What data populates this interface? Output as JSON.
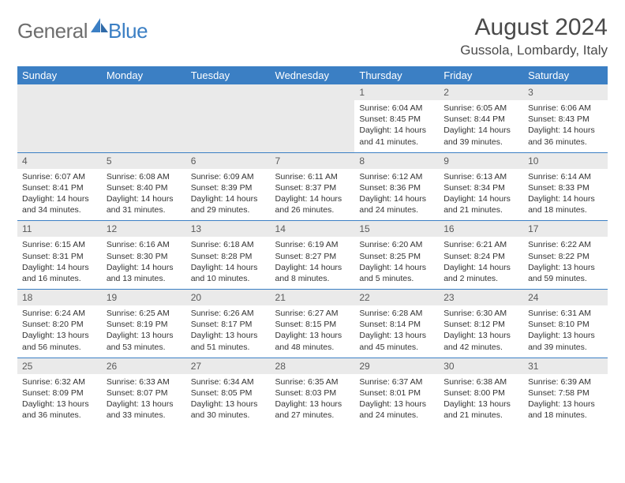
{
  "logo": {
    "general": "General",
    "blue": "Blue"
  },
  "title": "August 2024",
  "location": "Gussola, Lombardy, Italy",
  "colors": {
    "header_bg": "#3b7fc4",
    "header_text": "#ffffff",
    "daynum_bg": "#eaeaea",
    "row_border": "#3b7fc4",
    "body_text": "#333333",
    "logo_gray": "#6e6e6e",
    "logo_blue": "#3b7fc4"
  },
  "weekdays": [
    "Sunday",
    "Monday",
    "Tuesday",
    "Wednesday",
    "Thursday",
    "Friday",
    "Saturday"
  ],
  "weeks": [
    [
      null,
      null,
      null,
      null,
      {
        "n": "1",
        "sr": "Sunrise: 6:04 AM",
        "ss": "Sunset: 8:45 PM",
        "dl": "Daylight: 14 hours and 41 minutes."
      },
      {
        "n": "2",
        "sr": "Sunrise: 6:05 AM",
        "ss": "Sunset: 8:44 PM",
        "dl": "Daylight: 14 hours and 39 minutes."
      },
      {
        "n": "3",
        "sr": "Sunrise: 6:06 AM",
        "ss": "Sunset: 8:43 PM",
        "dl": "Daylight: 14 hours and 36 minutes."
      }
    ],
    [
      {
        "n": "4",
        "sr": "Sunrise: 6:07 AM",
        "ss": "Sunset: 8:41 PM",
        "dl": "Daylight: 14 hours and 34 minutes."
      },
      {
        "n": "5",
        "sr": "Sunrise: 6:08 AM",
        "ss": "Sunset: 8:40 PM",
        "dl": "Daylight: 14 hours and 31 minutes."
      },
      {
        "n": "6",
        "sr": "Sunrise: 6:09 AM",
        "ss": "Sunset: 8:39 PM",
        "dl": "Daylight: 14 hours and 29 minutes."
      },
      {
        "n": "7",
        "sr": "Sunrise: 6:11 AM",
        "ss": "Sunset: 8:37 PM",
        "dl": "Daylight: 14 hours and 26 minutes."
      },
      {
        "n": "8",
        "sr": "Sunrise: 6:12 AM",
        "ss": "Sunset: 8:36 PM",
        "dl": "Daylight: 14 hours and 24 minutes."
      },
      {
        "n": "9",
        "sr": "Sunrise: 6:13 AM",
        "ss": "Sunset: 8:34 PM",
        "dl": "Daylight: 14 hours and 21 minutes."
      },
      {
        "n": "10",
        "sr": "Sunrise: 6:14 AM",
        "ss": "Sunset: 8:33 PM",
        "dl": "Daylight: 14 hours and 18 minutes."
      }
    ],
    [
      {
        "n": "11",
        "sr": "Sunrise: 6:15 AM",
        "ss": "Sunset: 8:31 PM",
        "dl": "Daylight: 14 hours and 16 minutes."
      },
      {
        "n": "12",
        "sr": "Sunrise: 6:16 AM",
        "ss": "Sunset: 8:30 PM",
        "dl": "Daylight: 14 hours and 13 minutes."
      },
      {
        "n": "13",
        "sr": "Sunrise: 6:18 AM",
        "ss": "Sunset: 8:28 PM",
        "dl": "Daylight: 14 hours and 10 minutes."
      },
      {
        "n": "14",
        "sr": "Sunrise: 6:19 AM",
        "ss": "Sunset: 8:27 PM",
        "dl": "Daylight: 14 hours and 8 minutes."
      },
      {
        "n": "15",
        "sr": "Sunrise: 6:20 AM",
        "ss": "Sunset: 8:25 PM",
        "dl": "Daylight: 14 hours and 5 minutes."
      },
      {
        "n": "16",
        "sr": "Sunrise: 6:21 AM",
        "ss": "Sunset: 8:24 PM",
        "dl": "Daylight: 14 hours and 2 minutes."
      },
      {
        "n": "17",
        "sr": "Sunrise: 6:22 AM",
        "ss": "Sunset: 8:22 PM",
        "dl": "Daylight: 13 hours and 59 minutes."
      }
    ],
    [
      {
        "n": "18",
        "sr": "Sunrise: 6:24 AM",
        "ss": "Sunset: 8:20 PM",
        "dl": "Daylight: 13 hours and 56 minutes."
      },
      {
        "n": "19",
        "sr": "Sunrise: 6:25 AM",
        "ss": "Sunset: 8:19 PM",
        "dl": "Daylight: 13 hours and 53 minutes."
      },
      {
        "n": "20",
        "sr": "Sunrise: 6:26 AM",
        "ss": "Sunset: 8:17 PM",
        "dl": "Daylight: 13 hours and 51 minutes."
      },
      {
        "n": "21",
        "sr": "Sunrise: 6:27 AM",
        "ss": "Sunset: 8:15 PM",
        "dl": "Daylight: 13 hours and 48 minutes."
      },
      {
        "n": "22",
        "sr": "Sunrise: 6:28 AM",
        "ss": "Sunset: 8:14 PM",
        "dl": "Daylight: 13 hours and 45 minutes."
      },
      {
        "n": "23",
        "sr": "Sunrise: 6:30 AM",
        "ss": "Sunset: 8:12 PM",
        "dl": "Daylight: 13 hours and 42 minutes."
      },
      {
        "n": "24",
        "sr": "Sunrise: 6:31 AM",
        "ss": "Sunset: 8:10 PM",
        "dl": "Daylight: 13 hours and 39 minutes."
      }
    ],
    [
      {
        "n": "25",
        "sr": "Sunrise: 6:32 AM",
        "ss": "Sunset: 8:09 PM",
        "dl": "Daylight: 13 hours and 36 minutes."
      },
      {
        "n": "26",
        "sr": "Sunrise: 6:33 AM",
        "ss": "Sunset: 8:07 PM",
        "dl": "Daylight: 13 hours and 33 minutes."
      },
      {
        "n": "27",
        "sr": "Sunrise: 6:34 AM",
        "ss": "Sunset: 8:05 PM",
        "dl": "Daylight: 13 hours and 30 minutes."
      },
      {
        "n": "28",
        "sr": "Sunrise: 6:35 AM",
        "ss": "Sunset: 8:03 PM",
        "dl": "Daylight: 13 hours and 27 minutes."
      },
      {
        "n": "29",
        "sr": "Sunrise: 6:37 AM",
        "ss": "Sunset: 8:01 PM",
        "dl": "Daylight: 13 hours and 24 minutes."
      },
      {
        "n": "30",
        "sr": "Sunrise: 6:38 AM",
        "ss": "Sunset: 8:00 PM",
        "dl": "Daylight: 13 hours and 21 minutes."
      },
      {
        "n": "31",
        "sr": "Sunrise: 6:39 AM",
        "ss": "Sunset: 7:58 PM",
        "dl": "Daylight: 13 hours and 18 minutes."
      }
    ]
  ]
}
